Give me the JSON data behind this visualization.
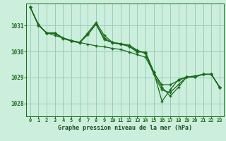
{
  "background_color": "#cceedd",
  "grid_color": "#99ccbb",
  "line_color": "#1a6b1a",
  "title": "Graphe pression niveau de la mer (hPa)",
  "title_bg": "#2d7a2d",
  "title_color": "#1a4d1a",
  "xlim": [
    -0.5,
    23.5
  ],
  "ylim": [
    1027.5,
    1031.85
  ],
  "yticks": [
    1028,
    1029,
    1030,
    1031
  ],
  "xticks": [
    0,
    1,
    2,
    3,
    4,
    5,
    6,
    7,
    8,
    9,
    10,
    11,
    12,
    13,
    14,
    15,
    16,
    17,
    18,
    19,
    20,
    21,
    22,
    23
  ],
  "series": [
    [
      1031.72,
      1031.02,
      1030.72,
      1030.62,
      1030.52,
      1030.42,
      1030.35,
      1030.65,
      1031.05,
      1030.45,
      1030.35,
      1030.3,
      1030.25,
      1030.05,
      1029.92,
      1029.12,
      1028.52,
      1028.42,
      1028.72,
      1029.02,
      1029.05,
      1029.12,
      1029.12,
      1028.62
    ],
    [
      1031.72,
      1031.02,
      1030.72,
      1030.72,
      1030.52,
      1030.42,
      1030.35,
      1030.72,
      1031.12,
      1030.62,
      1030.35,
      1030.3,
      1030.2,
      1029.98,
      1029.98,
      1029.22,
      1028.62,
      1028.28,
      1028.62,
      1029.02,
      1029.02,
      1029.12,
      1029.12,
      1028.62
    ],
    [
      1031.72,
      1031.05,
      1030.7,
      1030.7,
      1030.5,
      1030.4,
      1030.33,
      1030.66,
      1031.06,
      1030.52,
      1030.33,
      1030.28,
      1030.2,
      1030.03,
      1029.96,
      1029.22,
      1028.08,
      1028.52,
      1028.92,
      1029.02,
      1029.02,
      1029.12,
      1029.12,
      1028.62
    ],
    [
      1031.72,
      1031.02,
      1030.72,
      1030.72,
      1030.52,
      1030.42,
      1030.35,
      1030.28,
      1030.22,
      1030.18,
      1030.12,
      1030.08,
      1029.98,
      1029.88,
      1029.78,
      1029.18,
      1028.72,
      1028.72,
      1028.88,
      1029.02,
      1029.05,
      1029.12,
      1029.12,
      1028.62
    ]
  ]
}
